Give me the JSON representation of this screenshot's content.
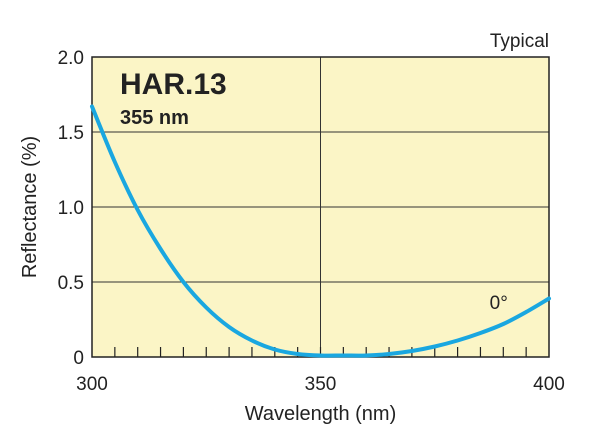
{
  "chart_data": {
    "type": "line",
    "title": "HAR.13",
    "subtitle": "355 nm",
    "note": "Typical",
    "xlabel": "Wavelength (nm)",
    "ylabel": "Reflectance (%)",
    "xlim": [
      300,
      400
    ],
    "ylim": [
      0,
      2.0
    ],
    "x_ticks": [
      "300",
      "350",
      "400"
    ],
    "y_ticks": [
      "0",
      "0.5",
      "1.0",
      "1.5",
      "2.0"
    ],
    "grid": true,
    "background_color": "#fbf5c6",
    "series": [
      {
        "name": "0°",
        "color": "#1aa7e0",
        "x": [
          300,
          305,
          310,
          315,
          320,
          325,
          330,
          335,
          340,
          345,
          350,
          355,
          360,
          365,
          370,
          375,
          380,
          385,
          390,
          395,
          400
        ],
        "y": [
          1.67,
          1.3,
          0.98,
          0.72,
          0.5,
          0.33,
          0.2,
          0.11,
          0.05,
          0.02,
          0.01,
          0.01,
          0.01,
          0.02,
          0.04,
          0.07,
          0.11,
          0.16,
          0.22,
          0.3,
          0.39
        ]
      }
    ]
  }
}
